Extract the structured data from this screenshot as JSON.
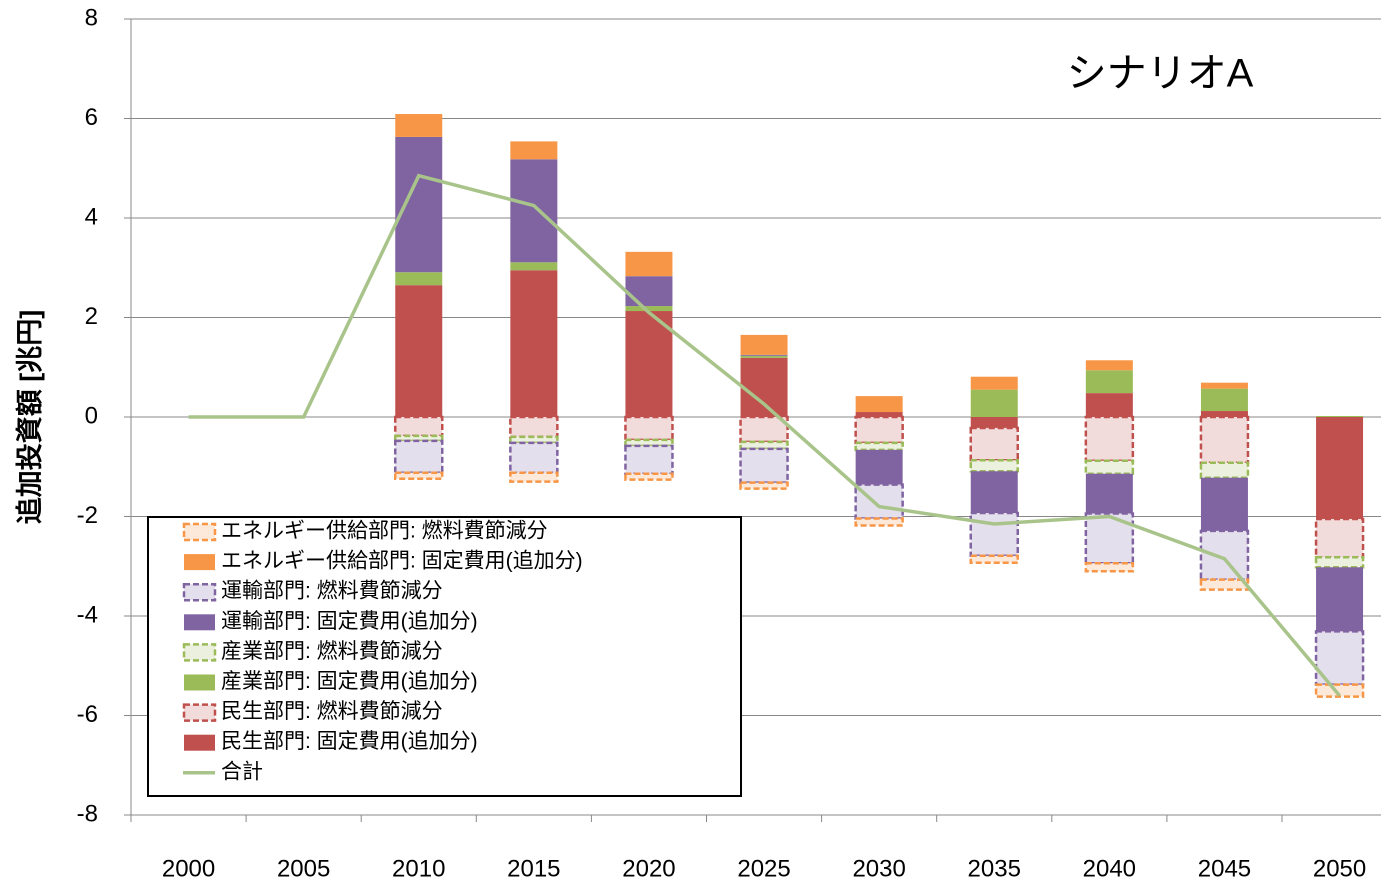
{
  "chart_data": {
    "type": "bar",
    "stacked": true,
    "title": "シナリオA",
    "y_label": "追加投資額 [兆円]",
    "categories": [
      "2000",
      "2005",
      "2010",
      "2015",
      "2020",
      "2025",
      "2030",
      "2035",
      "2040",
      "2045",
      "2050"
    ],
    "ylim": [
      -8,
      8
    ],
    "yticks": [
      -8,
      -6,
      -4,
      -2,
      0,
      2,
      4,
      6,
      8
    ],
    "grid": true,
    "series": [
      {
        "name": "エネルギー供給部門: 燃料費節減分",
        "color": "#f79646",
        "fill": "#fde9d9",
        "dashed": true,
        "values": [
          0,
          0,
          -0.12,
          -0.18,
          -0.12,
          -0.12,
          -0.14,
          -0.14,
          -0.16,
          -0.2,
          -0.24
        ]
      },
      {
        "name": "エネルギー供給部門: 固定費用(追加分)",
        "color": "#f79646",
        "fill": "#f79646",
        "dashed": false,
        "values": [
          0,
          0,
          0.46,
          0.36,
          0.49,
          0.4,
          0.32,
          0.26,
          0.2,
          0.12,
          0
        ]
      },
      {
        "name": "運輸部門: 燃料費節減分",
        "color": "#8064a2",
        "fill": "#e4dfec",
        "dashed": true,
        "values": [
          0,
          0,
          -0.64,
          -0.6,
          -0.56,
          -0.68,
          -0.68,
          -0.86,
          -1.0,
          -0.98,
          -1.07
        ]
      },
      {
        "name": "運輸部門: 固定費用(追加分)",
        "color": "#8064a2",
        "fill": "#8064a2",
        "dashed": false,
        "values": [
          0,
          0,
          2.72,
          2.07,
          0.6,
          0.02,
          -0.7,
          -0.84,
          -0.8,
          -1.07,
          -1.29
        ]
      },
      {
        "name": "産業部門: 燃料費節減分",
        "color": "#9bbb59",
        "fill": "#ebf1de",
        "dashed": true,
        "values": [
          0,
          0,
          -0.1,
          -0.12,
          -0.12,
          -0.14,
          -0.14,
          -0.22,
          -0.26,
          -0.3,
          -0.2
        ]
      },
      {
        "name": "産業部門: 固定費用(追加分)",
        "color": "#9bbb59",
        "fill": "#9bbb59",
        "dashed": false,
        "values": [
          0,
          0,
          0.26,
          0.16,
          0.1,
          0.04,
          0,
          0.55,
          0.46,
          0.45,
          0.02
        ]
      },
      {
        "name": "民生部門: 燃料費節減分",
        "color": "#c0504d",
        "fill": "#f2dcdb",
        "dashed": true,
        "values": [
          0,
          0,
          -0.38,
          -0.4,
          -0.46,
          -0.5,
          -0.52,
          -0.65,
          -0.88,
          -0.92,
          -0.77
        ]
      },
      {
        "name": "民生部門: 固定費用(追加分)",
        "color": "#c0504d",
        "fill": "#c0504d",
        "dashed": false,
        "values": [
          0,
          0,
          2.65,
          2.95,
          2.13,
          1.19,
          0.1,
          -0.22,
          0.48,
          0.12,
          -2.05
        ]
      },
      {
        "name": "合計",
        "color": "#a9c48a",
        "type": "line",
        "values": [
          0,
          0,
          4.85,
          4.25,
          2.1,
          0.26,
          -1.8,
          -2.15,
          -2.0,
          -2.85,
          -5.6
        ]
      }
    ]
  }
}
